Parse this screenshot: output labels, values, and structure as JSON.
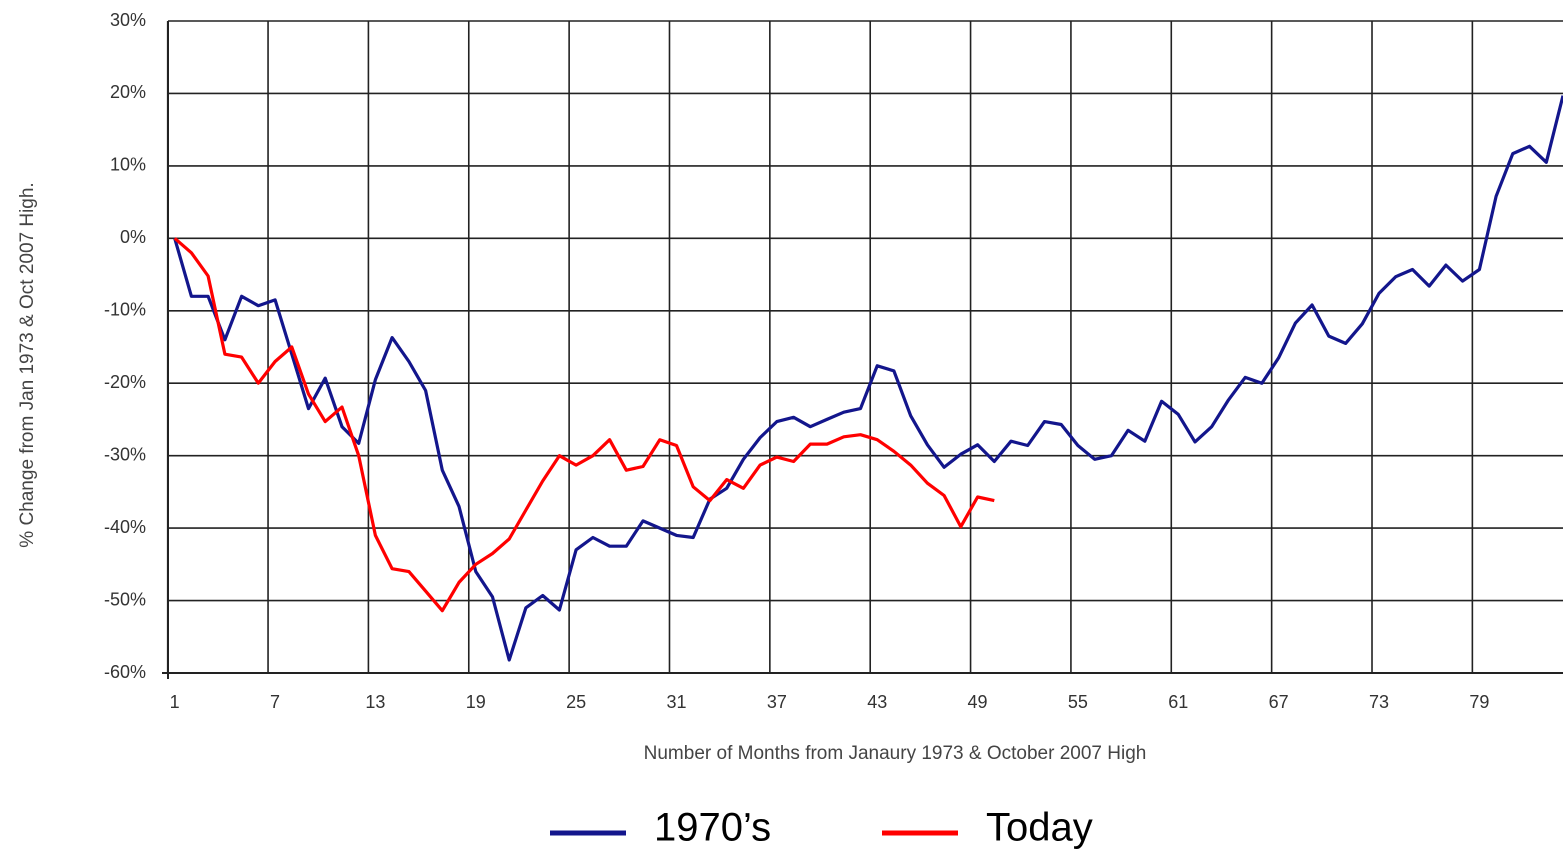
{
  "chart_data": {
    "type": "line",
    "x_label": "Number of Months from Janaury 1973 & October 2007 High",
    "y_label": "% Change from Jan 1973 & Oct 2007 High.",
    "x": [
      1,
      2,
      3,
      4,
      5,
      6,
      7,
      8,
      9,
      10,
      11,
      12,
      13,
      14,
      15,
      16,
      17,
      18,
      19,
      20,
      21,
      22,
      23,
      24,
      25,
      26,
      27,
      28,
      29,
      30,
      31,
      32,
      33,
      34,
      35,
      36,
      37,
      38,
      39,
      40,
      41,
      42,
      43,
      44,
      45,
      46,
      47,
      48,
      49,
      50,
      51,
      52,
      53,
      54,
      55,
      56,
      57,
      58,
      59,
      60,
      61,
      62,
      63,
      64,
      65,
      66,
      67,
      68,
      69,
      70,
      71,
      72,
      73,
      74,
      75,
      76,
      77,
      78,
      79,
      80,
      81,
      82,
      83,
      84
    ],
    "series": [
      {
        "name": "1970’s",
        "color": "#13168c",
        "values": [
          0,
          -8,
          -8,
          -14,
          -8,
          -9.3,
          -8.5,
          -16,
          -23.5,
          -19.3,
          -26,
          -28.3,
          -19.5,
          -13.7,
          -17,
          -21,
          -32,
          -37,
          -46,
          -49.5,
          -58.2,
          -51,
          -49.3,
          -51.3,
          -43,
          -41.3,
          -42.5,
          -42.5,
          -39,
          -40,
          -41,
          -41.3,
          -36,
          -34.5,
          -30.5,
          -27.5,
          -25.3,
          -24.7,
          -26,
          -25,
          -24,
          -23.5,
          -17.6,
          -18.3,
          -24.5,
          -28.5,
          -31.6,
          -29.8,
          -28.5,
          -30.8,
          -28,
          -28.6,
          -25.3,
          -25.7,
          -28.6,
          -30.5,
          -30,
          -26.5,
          -28,
          -22.5,
          -24.3,
          -28.1,
          -26,
          -22.3,
          -19.2,
          -20,
          -16.5,
          -11.7,
          -9.2,
          -13.5,
          -14.5,
          -11.8,
          -7.6,
          -5.3,
          -4.3,
          -6.6,
          -3.7,
          -5.9,
          -4.3,
          5.8,
          11.7,
          12.7,
          10.5,
          19.7
        ]
      },
      {
        "name": "Today",
        "color": "#ff0000",
        "values": [
          0,
          -2,
          -5.2,
          -16,
          -16.4,
          -20,
          -17,
          -15,
          -21.5,
          -25.3,
          -23.3,
          -30,
          -41,
          -45.6,
          -46,
          -48.7,
          -51.4,
          -47.5,
          -45,
          -43.5,
          -41.5,
          -37.5,
          -33.5,
          -30,
          -31.3,
          -30,
          -27.8,
          -32,
          -31.5,
          -27.8,
          -28.6,
          -34.3,
          -36.2,
          -33.3,
          -34.5,
          -31.3,
          -30.2,
          -30.8,
          -28.4,
          -28.4,
          -27.4,
          -27.1,
          -27.8,
          -29.4,
          -31.3,
          -33.8,
          -35.5,
          -39.8,
          -35.7,
          -36.2,
          null,
          null,
          null,
          null,
          null,
          null,
          null,
          null,
          null,
          null,
          null,
          null,
          null,
          null,
          null,
          null,
          null,
          null,
          null,
          null,
          null,
          null,
          null,
          null,
          null,
          null,
          null,
          null,
          null,
          null,
          null,
          null,
          null,
          null
        ]
      }
    ],
    "xlim": [
      0.6,
      84
    ],
    "xticks": [
      1,
      7,
      13,
      19,
      25,
      31,
      37,
      43,
      49,
      55,
      61,
      67,
      73,
      79
    ],
    "ylim": [
      -60,
      30
    ],
    "yticks": [
      {
        "value": -60,
        "label": "-60%"
      },
      {
        "value": -50,
        "label": "-50%"
      },
      {
        "value": -40,
        "label": "-40%"
      },
      {
        "value": -30,
        "label": "-30%"
      },
      {
        "value": -20,
        "label": "-20%"
      },
      {
        "value": -10,
        "label": "-10%"
      },
      {
        "value": 0,
        "label": "0%"
      },
      {
        "value": 10,
        "label": "10%"
      },
      {
        "value": 20,
        "label": "20%"
      },
      {
        "value": 30,
        "label": "30%"
      }
    ],
    "grid": true
  }
}
